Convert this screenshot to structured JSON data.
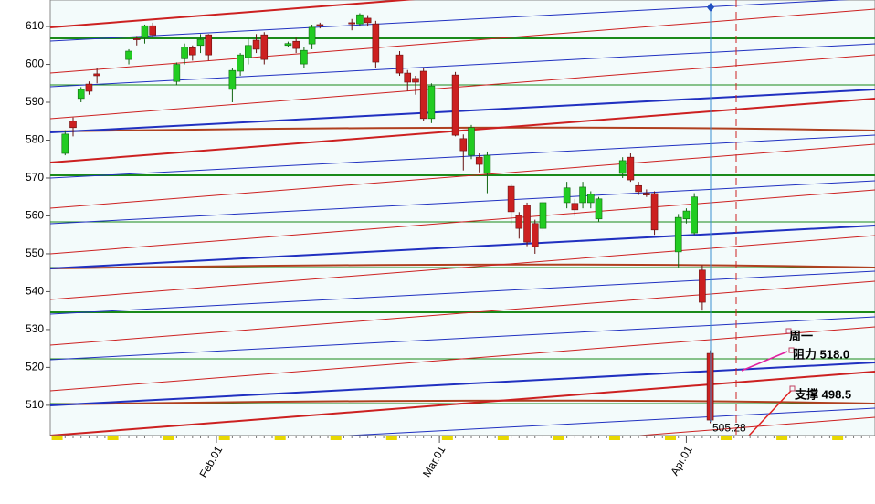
{
  "chart_data": {
    "type": "candlestick",
    "categories": [
      null,
      null,
      null,
      null,
      null,
      null,
      null,
      null,
      null,
      null,
      null,
      null,
      null,
      null,
      null,
      null,
      null,
      null,
      null,
      null,
      "Feb.01",
      null,
      null,
      null,
      null,
      null,
      null,
      null,
      null,
      null,
      null,
      null,
      null,
      null,
      null,
      null,
      null,
      null,
      null,
      null,
      null,
      null,
      null,
      null,
      null,
      null,
      null,
      null,
      "Mar.01",
      null,
      null,
      null,
      null,
      null,
      null,
      null,
      null,
      null,
      null,
      null,
      null,
      null,
      null,
      null,
      null,
      null,
      null,
      null,
      null,
      null,
      null,
      null,
      null,
      null,
      null,
      null,
      null,
      null,
      null,
      "Apr.01",
      null,
      null,
      null,
      null,
      null,
      null,
      null,
      null,
      null,
      null,
      null,
      null,
      null,
      null,
      null,
      null,
      null,
      null,
      null,
      null,
      null,
      null,
      null
    ],
    "open": [
      null,
      576.5,
      585,
      591,
      594.8,
      597.5,
      null,
      null,
      null,
      601.3,
      606.8,
      607,
      610.2,
      null,
      null,
      595.5,
      601.5,
      604.4,
      605,
      607.8,
      null,
      null,
      593.4,
      598.2,
      601.8,
      606.4,
      607.8,
      null,
      null,
      605,
      606.1,
      600.1,
      605.4,
      610.5,
      null,
      null,
      null,
      611,
      610.7,
      612.2,
      610.7,
      null,
      null,
      602.5,
      597.7,
      596.3,
      598.2,
      585.7,
      null,
      null,
      597.2,
      580.4,
      576,
      575.5,
      571.2,
      null,
      null,
      567.8,
      560.1,
      562.8,
      558,
      556.7,
      null,
      null,
      563.5,
      563.3,
      563.5,
      563.5,
      559.2,
      null,
      null,
      571.2,
      575.5,
      568,
      566,
      565.9,
      null,
      null,
      550.5,
      559.2,
      555.5,
      545.7,
      523.7,
      null,
      null,
      null,
      null,
      null,
      null,
      null,
      null,
      null,
      null,
      null,
      null,
      null,
      null,
      null,
      null,
      null,
      null,
      null,
      null
    ],
    "high": [
      null,
      582.6,
      586,
      594,
      595.5,
      599,
      null,
      null,
      null,
      604,
      607.5,
      610.5,
      611,
      null,
      null,
      600.5,
      605.5,
      605,
      608,
      608,
      null,
      null,
      599,
      603,
      607,
      608,
      608.5,
      null,
      null,
      606,
      607,
      604.5,
      610.5,
      611,
      null,
      null,
      null,
      612,
      613.5,
      613,
      611.5,
      null,
      null,
      603.5,
      598.5,
      597,
      599,
      595,
      null,
      null,
      598,
      581.5,
      584,
      576.5,
      577,
      null,
      null,
      568.5,
      561,
      563.5,
      559,
      564,
      null,
      null,
      569,
      564.5,
      569,
      566.5,
      565,
      null,
      null,
      575.5,
      576.5,
      569,
      567,
      566.5,
      null,
      null,
      560.5,
      562,
      566,
      547,
      524.5,
      null,
      null,
      null,
      null,
      null,
      null,
      null,
      null,
      null,
      null,
      null,
      null,
      null,
      null,
      null,
      null,
      null,
      null,
      null,
      null
    ],
    "low": [
      null,
      576,
      581,
      590,
      592,
      595,
      null,
      null,
      null,
      600,
      605,
      605.5,
      607,
      null,
      null,
      594.5,
      600,
      601,
      603,
      601,
      null,
      null,
      590,
      597,
      600,
      603,
      600,
      null,
      null,
      604.5,
      603,
      599,
      604,
      609.5,
      null,
      null,
      null,
      609,
      610,
      610,
      599,
      null,
      null,
      597,
      593,
      592,
      585,
      584.5,
      null,
      null,
      581,
      572,
      575,
      571.5,
      566,
      null,
      null,
      558,
      554,
      552,
      550,
      556,
      null,
      null,
      562,
      560,
      562,
      562,
      558.5,
      null,
      null,
      570,
      569,
      565.5,
      565,
      555,
      null,
      null,
      546.5,
      558,
      555,
      535,
      505.28,
      null,
      null,
      null,
      null,
      null,
      null,
      null,
      null,
      null,
      null,
      null,
      null,
      null,
      null,
      null,
      null,
      null,
      null,
      null,
      null
    ],
    "close": [
      null,
      581.6,
      583.3,
      593.4,
      592.9,
      597,
      null,
      null,
      null,
      603.5,
      606.5,
      610.2,
      607.8,
      null,
      null,
      600,
      604.6,
      602.5,
      606.6,
      602.5,
      null,
      null,
      598.4,
      602.5,
      605,
      604,
      601.3,
      null,
      null,
      605.5,
      604.2,
      603.7,
      609.8,
      610.2,
      null,
      null,
      null,
      610.7,
      613.1,
      611,
      600.6,
      null,
      null,
      597.7,
      595.3,
      595.3,
      585.7,
      594.3,
      null,
      null,
      581.3,
      577.2,
      583.3,
      573.6,
      576,
      null,
      null,
      561.1,
      556.7,
      553.1,
      551.9,
      563.5,
      null,
      null,
      567.4,
      561.6,
      567.6,
      565.7,
      564.5,
      null,
      null,
      574.6,
      569.5,
      566.4,
      565.5,
      556.3,
      null,
      null,
      559.6,
      561.3,
      565,
      537.2,
      506.1,
      null,
      null,
      null,
      null,
      null,
      null,
      null,
      null,
      null,
      null,
      null,
      null,
      null,
      null,
      null,
      null,
      null,
      null,
      null,
      null
    ],
    "up_color": "#22cc22",
    "down_color": "#cc2020",
    "ylim": [
      502.5,
      617
    ],
    "yticks": [
      510,
      520,
      530,
      540,
      550,
      560,
      570,
      580,
      590,
      600,
      610
    ],
    "price_tag": {
      "value": 505.28,
      "label": "505.28"
    },
    "annotations": [
      "周一",
      "阻力 518.0",
      "支撑 498.5"
    ]
  }
}
